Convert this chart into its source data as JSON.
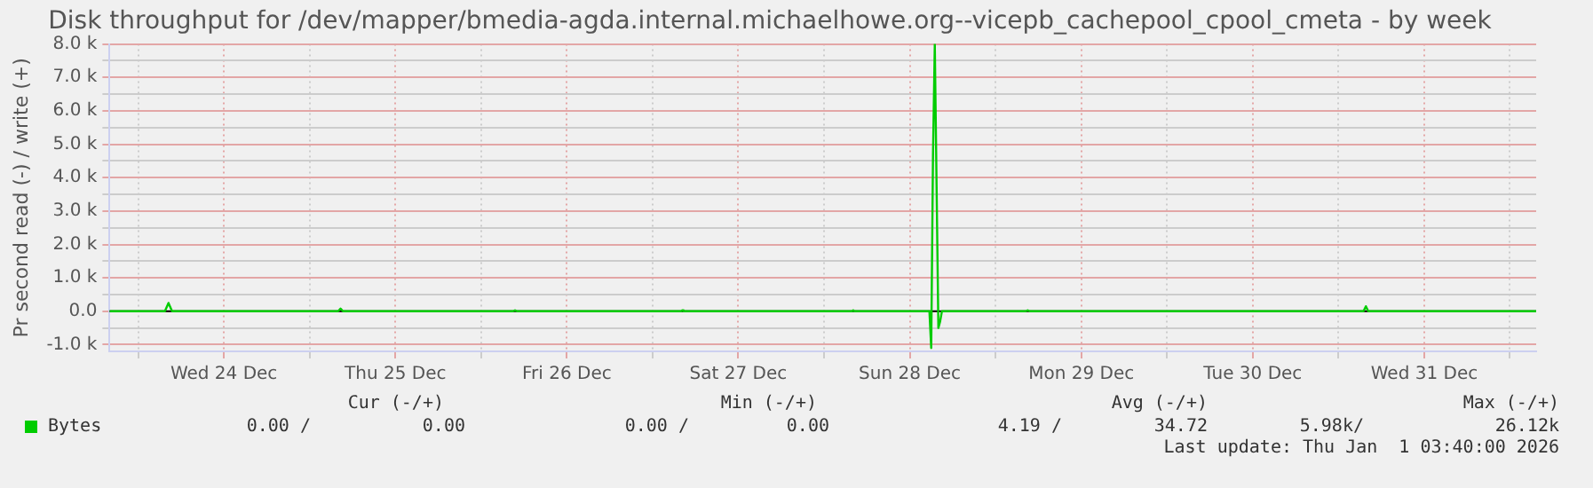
{
  "chart_data": {
    "type": "line",
    "title": "Disk throughput for /dev/mapper/bmedia-agda.internal.michaelhowe.org--vicepb_cachepool_cpool_cmeta - by week",
    "ylabel": "Pr second read (-) / write (+)",
    "x": [
      "2025-12-23T20:00",
      "2025-12-24T03:45",
      "2025-12-24T04:15",
      "2025-12-24T04:45",
      "2025-12-25T04:00",
      "2025-12-25T04:20",
      "2025-12-25T04:40",
      "2025-12-26T04:30",
      "2025-12-26T04:45",
      "2025-12-26T05:00",
      "2025-12-27T04:00",
      "2025-12-27T04:10",
      "2025-12-27T04:20",
      "2025-12-28T03:55",
      "2025-12-28T04:05",
      "2025-12-28T04:15",
      "2025-12-28T14:45",
      "2025-12-28T15:00",
      "2025-12-28T15:15",
      "2025-12-28T15:30",
      "2025-12-28T16:00",
      "2025-12-28T16:15",
      "2025-12-28T16:30",
      "2025-12-29T04:15",
      "2025-12-29T04:30",
      "2025-12-29T04:45",
      "2025-12-31T03:30",
      "2025-12-31T03:50",
      "2025-12-31T04:10",
      "2026-01-01T03:40"
    ],
    "series": [
      {
        "name": "Bytes",
        "color": "#00cc00",
        "values": [
          0,
          0,
          250,
          0,
          0,
          80,
          0,
          0,
          30,
          0,
          0,
          30,
          0,
          0,
          30,
          0,
          0,
          -1100,
          4700,
          8000,
          -500,
          -300,
          0,
          0,
          30,
          0,
          0,
          150,
          0,
          0
        ]
      }
    ],
    "xlim": [
      "2025-12-23T20:00",
      "2026-01-01T03:40"
    ],
    "xticks": [
      {
        "value": "2025-12-24T00:00",
        "label": null
      },
      {
        "value": "2025-12-24T12:00",
        "label": "Wed 24 Dec"
      },
      {
        "value": "2025-12-25T00:00",
        "label": null
      },
      {
        "value": "2025-12-25T12:00",
        "label": "Thu 25 Dec"
      },
      {
        "value": "2025-12-26T00:00",
        "label": null
      },
      {
        "value": "2025-12-26T12:00",
        "label": "Fri 26 Dec"
      },
      {
        "value": "2025-12-27T00:00",
        "label": null
      },
      {
        "value": "2025-12-27T12:00",
        "label": "Sat 27 Dec"
      },
      {
        "value": "2025-12-28T00:00",
        "label": null
      },
      {
        "value": "2025-12-28T12:00",
        "label": "Sun 28 Dec"
      },
      {
        "value": "2025-12-29T00:00",
        "label": null
      },
      {
        "value": "2025-12-29T12:00",
        "label": "Mon 29 Dec"
      },
      {
        "value": "2025-12-30T00:00",
        "label": null
      },
      {
        "value": "2025-12-30T12:00",
        "label": "Tue 30 Dec"
      },
      {
        "value": "2025-12-31T00:00",
        "label": null
      },
      {
        "value": "2025-12-31T12:00",
        "label": "Wed 31 Dec"
      },
      {
        "value": "2026-01-01T00:00",
        "label": null
      }
    ],
    "ylim": [
      -1200,
      8000
    ],
    "yticks": [
      {
        "value": -1000,
        "label": "-1.0 k"
      },
      {
        "value": -500,
        "label": null
      },
      {
        "value": 0,
        "label": "0.0"
      },
      {
        "value": 500,
        "label": null
      },
      {
        "value": 1000,
        "label": "1.0 k"
      },
      {
        "value": 1500,
        "label": null
      },
      {
        "value": 2000,
        "label": "2.0 k"
      },
      {
        "value": 2500,
        "label": null
      },
      {
        "value": 3000,
        "label": "3.0 k"
      },
      {
        "value": 3500,
        "label": null
      },
      {
        "value": 4000,
        "label": "4.0 k"
      },
      {
        "value": 4500,
        "label": null
      },
      {
        "value": 5000,
        "label": "5.0 k"
      },
      {
        "value": 5500,
        "label": null
      },
      {
        "value": 6000,
        "label": "6.0 k"
      },
      {
        "value": 6500,
        "label": null
      },
      {
        "value": 7000,
        "label": "7.0 k"
      },
      {
        "value": 7500,
        "label": null
      },
      {
        "value": 8000,
        "label": "8.0 k"
      }
    ],
    "ref_lines": [
      {
        "axis": "y",
        "value": 0,
        "color": "#000000"
      }
    ],
    "grid": true,
    "legend": "bottom left",
    "marker": "none",
    "line_style": "solid",
    "annotations": [
      "Cur (-/+)",
      "Min (-/+)",
      "Avg (-/+)",
      "Max (-/+)",
      "0.00 /",
      "0.00",
      "0.00 /",
      "0.00",
      "4.19 /",
      "34.72",
      "5.98k/",
      "26.12k",
      "Last update: Thu Jan  1 03:40:00 2026"
    ]
  }
}
